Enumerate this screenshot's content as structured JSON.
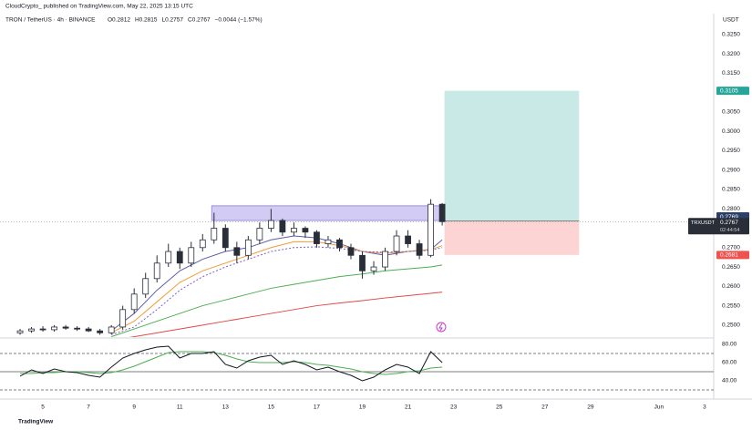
{
  "chart_data": {
    "type": "candlestick",
    "header": "CloudCrypto_ published on TradingView.com, May 22, 2025 13:15 UTC",
    "symbol": "TRON / TetherUS · 4h · BINANCE",
    "legend": [
      "O0.2812",
      "H0.2815",
      "L0.2757",
      "C0.2767",
      "−0.0044 (−1.57%)"
    ],
    "currency": "USDT",
    "footer": "TradingView",
    "xlim": [
      3.12,
      34.4
    ],
    "xticks": [
      5,
      7,
      9,
      11,
      13,
      15,
      17,
      19,
      21,
      23,
      25,
      27,
      29,
      {
        "value": 32,
        "label": "Jun"
      },
      {
        "value": 34,
        "label": "3"
      }
    ],
    "ylim": [
      0.2469,
      0.3304
    ],
    "yticks": [
      {
        "value": 0.25,
        "label": "0.2500"
      },
      {
        "value": 0.255,
        "label": "0.2550"
      },
      {
        "value": 0.26,
        "label": "0.2600"
      },
      {
        "value": 0.265,
        "label": "0.2650"
      },
      {
        "value": 0.27,
        "label": "0.2700"
      },
      {
        "value": 0.28,
        "label": "0.2800"
      },
      {
        "value": 0.285,
        "label": "0.2850"
      },
      {
        "value": 0.29,
        "label": "0.2900"
      },
      {
        "value": 0.295,
        "label": "0.2950"
      },
      {
        "value": 0.3,
        "label": "0.3000"
      },
      {
        "value": 0.305,
        "label": "0.3050"
      },
      {
        "value": 0.315,
        "label": "0.3150"
      },
      {
        "value": 0.32,
        "label": "0.3200"
      },
      {
        "value": 0.325,
        "label": "0.3250"
      }
    ],
    "up_color": "#ffffff",
    "down_color": "#2a2e39",
    "candles": {
      "x": [
        4,
        4.5,
        5,
        5.5,
        6,
        6.5,
        7,
        7.5,
        8,
        8.5,
        9,
        9.5,
        10,
        10.5,
        11,
        11.5,
        12,
        12.5,
        13,
        13.5,
        14,
        14.5,
        15,
        15.5,
        16,
        16.5,
        17,
        17.5,
        18,
        18.5,
        19,
        19.5,
        20,
        20.5,
        21,
        21.5,
        22,
        22.5
      ],
      "open": [
        0.248,
        0.2485,
        0.249,
        0.2488,
        0.2495,
        0.2492,
        0.249,
        0.2485,
        0.248,
        0.2495,
        0.254,
        0.258,
        0.262,
        0.266,
        0.269,
        0.266,
        0.27,
        0.272,
        0.275,
        0.27,
        0.268,
        0.272,
        0.275,
        0.277,
        0.274,
        0.275,
        0.274,
        0.271,
        0.272,
        0.27,
        0.268,
        0.264,
        0.265,
        0.269,
        0.273,
        0.271,
        0.268,
        0.2812
      ],
      "high": [
        0.249,
        0.2495,
        0.2497,
        0.25,
        0.25,
        0.2497,
        0.2495,
        0.249,
        0.25,
        0.255,
        0.2595,
        0.2635,
        0.268,
        0.271,
        0.27,
        0.2715,
        0.2735,
        0.279,
        0.276,
        0.2715,
        0.273,
        0.2765,
        0.28,
        0.2775,
        0.2765,
        0.2755,
        0.2745,
        0.273,
        0.2725,
        0.271,
        0.269,
        0.2665,
        0.27,
        0.2745,
        0.2745,
        0.272,
        0.2825,
        0.2815
      ],
      "low": [
        0.2475,
        0.248,
        0.2483,
        0.2483,
        0.2488,
        0.2485,
        0.2482,
        0.2475,
        0.2476,
        0.2488,
        0.253,
        0.257,
        0.261,
        0.265,
        0.2645,
        0.265,
        0.269,
        0.271,
        0.269,
        0.266,
        0.267,
        0.271,
        0.274,
        0.273,
        0.273,
        0.2725,
        0.27,
        0.27,
        0.269,
        0.267,
        0.262,
        0.263,
        0.264,
        0.268,
        0.27,
        0.267,
        0.2675,
        0.2757
      ],
      "close": [
        0.2485,
        0.249,
        0.2488,
        0.2495,
        0.2492,
        0.249,
        0.2485,
        0.248,
        0.2495,
        0.254,
        0.258,
        0.262,
        0.266,
        0.269,
        0.266,
        0.27,
        0.272,
        0.275,
        0.27,
        0.268,
        0.272,
        0.275,
        0.277,
        0.274,
        0.275,
        0.274,
        0.271,
        0.272,
        0.27,
        0.268,
        0.264,
        0.265,
        0.269,
        0.273,
        0.271,
        0.268,
        0.2812,
        0.2767
      ]
    },
    "ma_x": [
      8,
      9,
      10,
      11,
      12,
      13,
      14,
      15,
      16,
      17,
      18,
      19,
      20,
      21,
      22,
      22.5
    ],
    "ma_lines": [
      {
        "color": "#5b5ea6",
        "dashed": false,
        "values": [
          0.2485,
          0.253,
          0.259,
          0.264,
          0.267,
          0.269,
          0.27,
          0.272,
          0.273,
          0.2725,
          0.271,
          0.269,
          0.268,
          0.269,
          0.2695,
          0.272
        ]
      },
      {
        "color": "#f39c34",
        "dashed": false,
        "values": [
          0.248,
          0.251,
          0.256,
          0.261,
          0.264,
          0.266,
          0.268,
          0.27,
          0.2715,
          0.2715,
          0.2705,
          0.269,
          0.2685,
          0.269,
          0.2695,
          0.2705
        ]
      },
      {
        "color": "#7b61c9",
        "dashed": true,
        "values": [
          0.2475,
          0.2495,
          0.254,
          0.259,
          0.2625,
          0.265,
          0.267,
          0.269,
          0.27,
          0.2702,
          0.2698,
          0.269,
          0.2688,
          0.269,
          0.2693,
          0.27
        ]
      },
      {
        "color": "#4caf50",
        "dashed": false,
        "values": [
          0.247,
          0.249,
          0.251,
          0.253,
          0.255,
          0.2565,
          0.258,
          0.2595,
          0.2605,
          0.2615,
          0.2625,
          0.2632,
          0.264,
          0.2645,
          0.265,
          0.2655
        ]
      },
      {
        "color": "#e04848",
        "dashed": false,
        "values": [
          0.246,
          0.247,
          0.248,
          0.249,
          0.25,
          0.251,
          0.252,
          0.253,
          0.254,
          0.255,
          0.2557,
          0.2563,
          0.257,
          0.2576,
          0.2582,
          0.2585
        ]
      }
    ],
    "zone": {
      "x": [
        12.4,
        22.5
      ],
      "y": [
        0.277,
        0.2808
      ],
      "color": "#9c8fe8"
    },
    "position": {
      "x": [
        22.6,
        28.5
      ],
      "target": {
        "value": 0.3105,
        "label": "0.3105",
        "color": "#26a69a"
      },
      "entry": {
        "value": 0.2769,
        "label": "0.2769",
        "color": "#2a3f6a"
      },
      "stop": {
        "value": 0.2681,
        "label": "0.2681",
        "color": "#ef5350"
      }
    },
    "last_price": {
      "symbol": "TRXUSDT",
      "value": 0.2767,
      "label": "0.2767",
      "countdown": "02:44:54"
    },
    "rsi": {
      "ylim": [
        21,
        86
      ],
      "yticks": [
        {
          "value": 40,
          "label": "40.00"
        },
        {
          "value": 60,
          "label": "60.00"
        },
        {
          "value": 80,
          "label": "80.00"
        }
      ],
      "bands": [
        30,
        50,
        70
      ],
      "color": "#131722",
      "ma_color": "#4caf50",
      "values": [
        45,
        52,
        48,
        53,
        50,
        49,
        46,
        44,
        55,
        65,
        70,
        74,
        77,
        78,
        65,
        70,
        70,
        72,
        58,
        54,
        62,
        66,
        68,
        58,
        62,
        58,
        52,
        55,
        50,
        46,
        40,
        44,
        52,
        58,
        55,
        48,
        72,
        60
      ],
      "ma": [
        48,
        48,
        49,
        49,
        50,
        50,
        49,
        48,
        49,
        52,
        56,
        61,
        66,
        71,
        72,
        72,
        72,
        71,
        68,
        64,
        61,
        60,
        60,
        60,
        61,
        60,
        58,
        57,
        55,
        53,
        50,
        48,
        47,
        48,
        50,
        51,
        54,
        55
      ]
    }
  }
}
